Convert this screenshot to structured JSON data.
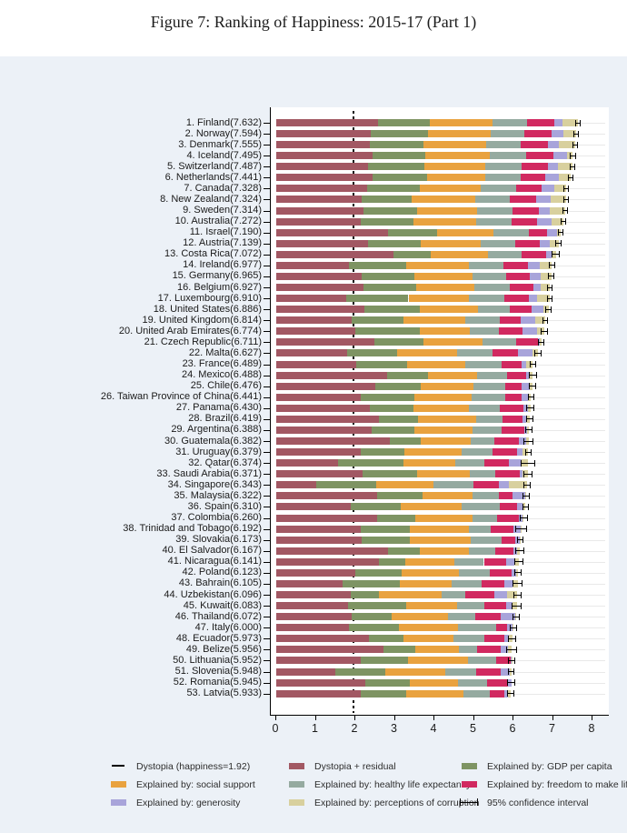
{
  "title": "Figure 7: Ranking of Happiness: 2015-17 (Part 1)",
  "colors": {
    "background": "#ecf1f7",
    "plot_background": "#ffffff",
    "axis": "#000000",
    "row_guide": "#e9e9e9",
    "residual": "#a25863",
    "gdp": "#7e9463",
    "soc": "#e9a23f",
    "hea": "#95aaa0",
    "fre": "#d12960",
    "gen": "#a8a4da",
    "cor": "#d8d09e"
  },
  "legend": {
    "items": [
      {
        "type": "line",
        "colorKey": "axis",
        "label": "Dystopia (happiness=1.92)"
      },
      {
        "type": "swatch",
        "colorKey": "residual",
        "label": "Dystopia + residual"
      },
      {
        "type": "swatch",
        "colorKey": "gdp",
        "label": "Explained by: GDP per capita"
      },
      {
        "type": "swatch",
        "colorKey": "soc",
        "label": "Explained by: social support"
      },
      {
        "type": "swatch",
        "colorKey": "hea",
        "label": "Explained by: healthy life expectancy"
      },
      {
        "type": "swatch",
        "colorKey": "fre",
        "label": "Explained by: freedom to make life choices"
      },
      {
        "type": "swatch",
        "colorKey": "gen",
        "label": "Explained by: generosity"
      },
      {
        "type": "swatch",
        "colorKey": "cor",
        "label": "Explained by: perceptions of corruption"
      },
      {
        "type": "whisker",
        "colorKey": "axis",
        "label": "95% confidence interval"
      }
    ]
  },
  "chart_data": {
    "type": "bar",
    "orientation": "horizontal",
    "stacked": true,
    "title": "Figure 7: Ranking of Happiness: 2015-17 (Part 1)",
    "xlabel": "",
    "ylabel": "",
    "xlim": [
      0,
      8
    ],
    "x_ticks": [
      0,
      1,
      2,
      3,
      4,
      5,
      6,
      7,
      8
    ],
    "grid": "row-guides",
    "legend_position": "bottom",
    "dystopia_line": {
      "x": 1.92,
      "label": "Dystopia (happiness=1.92)"
    },
    "segments": [
      {
        "key": "residual",
        "label": "Dystopia + residual",
        "computed": "score minus explained components"
      },
      {
        "key": "gdp",
        "label": "Explained by: GDP per capita"
      },
      {
        "key": "soc",
        "label": "Explained by: social support"
      },
      {
        "key": "hea",
        "label": "Explained by: healthy life expectancy"
      },
      {
        "key": "fre",
        "label": "Explained by: freedom to make life choices"
      },
      {
        "key": "gen",
        "label": "Explained by: generosity"
      },
      {
        "key": "cor",
        "label": "Explained by: perceptions of corruption"
      }
    ],
    "ci_label": "95% confidence interval",
    "countries": [
      {
        "rank": 1,
        "name": "Finland",
        "score": 7.632,
        "gdp": 1.305,
        "soc": 1.592,
        "hea": 0.874,
        "fre": 0.681,
        "gen": 0.202,
        "cor": 0.393,
        "ci": 0.07
      },
      {
        "rank": 2,
        "name": "Norway",
        "score": 7.594,
        "gdp": 1.456,
        "soc": 1.582,
        "hea": 0.861,
        "fre": 0.686,
        "gen": 0.286,
        "cor": 0.34,
        "ci": 0.06
      },
      {
        "rank": 3,
        "name": "Denmark",
        "score": 7.555,
        "gdp": 1.351,
        "soc": 1.59,
        "hea": 0.868,
        "fre": 0.683,
        "gen": 0.284,
        "cor": 0.408,
        "ci": 0.07
      },
      {
        "rank": 4,
        "name": "Iceland",
        "score": 7.495,
        "gdp": 1.343,
        "soc": 1.644,
        "hea": 0.914,
        "fre": 0.677,
        "gen": 0.353,
        "cor": 0.138,
        "ci": 0.08
      },
      {
        "rank": 5,
        "name": "Switzerland",
        "score": 7.487,
        "gdp": 1.42,
        "soc": 1.549,
        "hea": 0.927,
        "fre": 0.66,
        "gen": 0.256,
        "cor": 0.357,
        "ci": 0.07
      },
      {
        "rank": 6,
        "name": "Netherlands",
        "score": 7.441,
        "gdp": 1.361,
        "soc": 1.488,
        "hea": 0.878,
        "fre": 0.638,
        "gen": 0.333,
        "cor": 0.295,
        "ci": 0.06
      },
      {
        "rank": 7,
        "name": "Canada",
        "score": 7.328,
        "gdp": 1.33,
        "soc": 1.532,
        "hea": 0.896,
        "fre": 0.653,
        "gen": 0.321,
        "cor": 0.291,
        "ci": 0.07
      },
      {
        "rank": 8,
        "name": "New Zealand",
        "score": 7.324,
        "gdp": 1.268,
        "soc": 1.601,
        "hea": 0.876,
        "fre": 0.669,
        "gen": 0.365,
        "cor": 0.389,
        "ci": 0.06
      },
      {
        "rank": 9,
        "name": "Sweden",
        "score": 7.314,
        "gdp": 1.355,
        "soc": 1.501,
        "hea": 0.913,
        "fre": 0.659,
        "gen": 0.285,
        "cor": 0.383,
        "ci": 0.07
      },
      {
        "rank": 10,
        "name": "Australia",
        "score": 7.272,
        "gdp": 1.34,
        "soc": 1.573,
        "hea": 0.91,
        "fre": 0.647,
        "gen": 0.361,
        "cor": 0.302,
        "ci": 0.07
      },
      {
        "rank": 11,
        "name": "Israel",
        "score": 7.19,
        "gdp": 1.244,
        "soc": 1.433,
        "hea": 0.888,
        "fre": 0.464,
        "gen": 0.262,
        "cor": 0.082,
        "ci": 0.07
      },
      {
        "rank": 12,
        "name": "Austria",
        "score": 7.139,
        "gdp": 1.341,
        "soc": 1.504,
        "hea": 0.891,
        "fre": 0.617,
        "gen": 0.242,
        "cor": 0.224,
        "ci": 0.08
      },
      {
        "rank": 13,
        "name": "Costa Rica",
        "score": 7.072,
        "gdp": 0.959,
        "soc": 1.431,
        "hea": 0.868,
        "fre": 0.613,
        "gen": 0.144,
        "cor": 0.101,
        "ci": 0.1
      },
      {
        "rank": 14,
        "name": "Ireland",
        "score": 6.977,
        "gdp": 1.448,
        "soc": 1.583,
        "hea": 0.876,
        "fre": 0.614,
        "gen": 0.307,
        "cor": 0.306,
        "ci": 0.07
      },
      {
        "rank": 15,
        "name": "Germany",
        "score": 6.965,
        "gdp": 1.34,
        "soc": 1.474,
        "hea": 0.861,
        "fre": 0.586,
        "gen": 0.273,
        "cor": 0.28,
        "ci": 0.08
      },
      {
        "rank": 16,
        "name": "Belgium",
        "score": 6.927,
        "gdp": 1.324,
        "soc": 1.483,
        "hea": 0.894,
        "fre": 0.583,
        "gen": 0.188,
        "cor": 0.24,
        "ci": 0.07
      },
      {
        "rank": 17,
        "name": "Luxembourg",
        "score": 6.91,
        "gdp": 1.576,
        "soc": 1.52,
        "hea": 0.896,
        "fre": 0.632,
        "gen": 0.196,
        "cor": 0.321,
        "ci": 0.07
      },
      {
        "rank": 18,
        "name": "United States",
        "score": 6.886,
        "gdp": 1.398,
        "soc": 1.471,
        "hea": 0.819,
        "fre": 0.547,
        "gen": 0.291,
        "cor": 0.133,
        "ci": 0.08
      },
      {
        "rank": 19,
        "name": "United Kingdom",
        "score": 6.814,
        "gdp": 1.301,
        "soc": 1.559,
        "hea": 0.883,
        "fre": 0.533,
        "gen": 0.354,
        "cor": 0.272,
        "ci": 0.07
      },
      {
        "rank": 20,
        "name": "United Arab Emirates",
        "score": 6.774,
        "gdp": 1.626,
        "soc": 1.266,
        "hea": 0.726,
        "fre": 0.608,
        "gen": 0.36,
        "cor": 0.182,
        "ci": 0.09
      },
      {
        "rank": 21,
        "name": "Czech Republic",
        "score": 6.711,
        "gdp": 1.233,
        "soc": 1.489,
        "hea": 0.854,
        "fre": 0.543,
        "gen": 0.064,
        "cor": 0.034,
        "ci": 0.08
      },
      {
        "rank": 22,
        "name": "Malta",
        "score": 6.627,
        "gdp": 1.27,
        "soc": 1.525,
        "hea": 0.884,
        "fre": 0.645,
        "gen": 0.376,
        "cor": 0.142,
        "ci": 0.09
      },
      {
        "rank": 23,
        "name": "France",
        "score": 6.489,
        "gdp": 1.293,
        "soc": 1.466,
        "hea": 0.908,
        "fre": 0.52,
        "gen": 0.098,
        "cor": 0.176,
        "ci": 0.08
      },
      {
        "rank": 24,
        "name": "Mexico",
        "score": 6.488,
        "gdp": 1.038,
        "soc": 1.252,
        "hea": 0.761,
        "fre": 0.479,
        "gen": 0.069,
        "cor": 0.095,
        "ci": 0.1
      },
      {
        "rank": 25,
        "name": "Chile",
        "score": 6.476,
        "gdp": 1.131,
        "soc": 1.331,
        "hea": 0.808,
        "fre": 0.431,
        "gen": 0.197,
        "cor": 0.061,
        "ci": 0.09
      },
      {
        "rank": 26,
        "name": "Taiwan Province of China",
        "score": 6.441,
        "gdp": 1.365,
        "soc": 1.436,
        "hea": 0.857,
        "fre": 0.418,
        "gen": 0.151,
        "cor": 0.078,
        "ci": 0.08
      },
      {
        "rank": 27,
        "name": "Panama",
        "score": 6.43,
        "gdp": 1.112,
        "soc": 1.395,
        "hea": 0.779,
        "fre": 0.596,
        "gen": 0.125,
        "cor": 0.054,
        "ci": 0.1
      },
      {
        "rank": 28,
        "name": "Brazil",
        "score": 6.419,
        "gdp": 0.986,
        "soc": 1.474,
        "hea": 0.675,
        "fre": 0.493,
        "gen": 0.11,
        "cor": 0.088,
        "ci": 0.09
      },
      {
        "rank": 29,
        "name": "Argentina",
        "score": 6.388,
        "gdp": 1.073,
        "soc": 1.468,
        "hea": 0.744,
        "fre": 0.57,
        "gen": 0.062,
        "cor": 0.054,
        "ci": 0.09
      },
      {
        "rank": 30,
        "name": "Guatemala",
        "score": 6.382,
        "gdp": 0.781,
        "soc": 1.268,
        "hea": 0.608,
        "fre": 0.604,
        "gen": 0.179,
        "cor": 0.071,
        "ci": 0.12
      },
      {
        "rank": 31,
        "name": "Uruguay",
        "score": 6.379,
        "gdp": 1.093,
        "soc": 1.459,
        "hea": 0.771,
        "fre": 0.625,
        "gen": 0.13,
        "cor": 0.155,
        "ci": 0.09
      },
      {
        "rank": 32,
        "name": "Qatar",
        "score": 6.374,
        "gdp": 1.649,
        "soc": 1.303,
        "hea": 0.748,
        "fre": 0.604,
        "gen": 0.33,
        "cor": 0.167,
        "ci": 0.18
      },
      {
        "rank": 33,
        "name": "Saudi Arabia",
        "score": 6.371,
        "gdp": 1.379,
        "soc": 1.331,
        "hea": 0.639,
        "fre": 0.626,
        "gen": 0.08,
        "cor": 0.132,
        "ci": 0.12
      },
      {
        "rank": 34,
        "name": "Singapore",
        "score": 6.343,
        "gdp": 1.529,
        "soc": 1.451,
        "hea": 1.008,
        "fre": 0.631,
        "gen": 0.261,
        "cor": 0.457,
        "ci": 0.09
      },
      {
        "rank": 35,
        "name": "Malaysia",
        "score": 6.322,
        "gdp": 1.161,
        "soc": 1.258,
        "hea": 0.669,
        "fre": 0.356,
        "gen": 0.31,
        "cor": 0.024,
        "ci": 0.1
      },
      {
        "rank": 36,
        "name": "Spain",
        "score": 6.31,
        "gdp": 1.251,
        "soc": 1.538,
        "hea": 0.965,
        "fre": 0.449,
        "gen": 0.142,
        "cor": 0.074,
        "ci": 0.08
      },
      {
        "rank": 37,
        "name": "Colombia",
        "score": 6.26,
        "gdp": 0.96,
        "soc": 1.439,
        "hea": 0.635,
        "fre": 0.531,
        "gen": 0.099,
        "cor": 0.034,
        "ci": 0.1
      },
      {
        "rank": 38,
        "name": "Trinidad and Tobago",
        "score": 6.192,
        "gdp": 1.223,
        "soc": 1.492,
        "hea": 0.564,
        "fre": 0.575,
        "gen": 0.171,
        "cor": 0.019,
        "ci": 0.15
      },
      {
        "rank": 39,
        "name": "Slovakia",
        "score": 6.173,
        "gdp": 1.21,
        "soc": 1.537,
        "hea": 0.776,
        "fre": 0.354,
        "gen": 0.105,
        "cor": 0.022,
        "ci": 0.09
      },
      {
        "rank": 40,
        "name": "El Salvador",
        "score": 6.167,
        "gdp": 0.794,
        "soc": 1.242,
        "hea": 0.675,
        "fre": 0.464,
        "gen": 0.083,
        "cor": 0.074,
        "ci": 0.11
      },
      {
        "rank": 41,
        "name": "Nicaragua",
        "score": 6.141,
        "gdp": 0.668,
        "soc": 1.247,
        "hea": 0.746,
        "fre": 0.571,
        "gen": 0.202,
        "cor": 0.115,
        "ci": 0.11
      },
      {
        "rank": 42,
        "name": "Poland",
        "score": 6.123,
        "gdp": 1.176,
        "soc": 1.448,
        "hea": 0.781,
        "fre": 0.546,
        "gen": 0.108,
        "cor": 0.064,
        "ci": 0.09
      },
      {
        "rank": 43,
        "name": "Bahrain",
        "score": 6.105,
        "gdp": 1.439,
        "soc": 1.326,
        "hea": 0.748,
        "fre": 0.579,
        "gen": 0.2,
        "cor": 0.135,
        "ci": 0.13
      },
      {
        "rank": 44,
        "name": "Uzbekistan",
        "score": 6.096,
        "gdp": 0.719,
        "soc": 1.584,
        "hea": 0.605,
        "fre": 0.724,
        "gen": 0.328,
        "cor": 0.259,
        "ci": 0.1
      },
      {
        "rank": 45,
        "name": "Kuwait",
        "score": 6.083,
        "gdp": 1.474,
        "soc": 1.301,
        "hea": 0.675,
        "fre": 0.554,
        "gen": 0.167,
        "cor": 0.106,
        "ci": 0.12
      },
      {
        "rank": 46,
        "name": "Thailand",
        "score": 6.072,
        "gdp": 1.016,
        "soc": 1.417,
        "hea": 0.707,
        "fre": 0.637,
        "gen": 0.364,
        "cor": 0.029,
        "ci": 0.09
      },
      {
        "rank": 47,
        "name": "Italy",
        "score": 6.0,
        "gdp": 1.264,
        "soc": 1.501,
        "hea": 0.946,
        "fre": 0.281,
        "gen": 0.137,
        "cor": 0.028,
        "ci": 0.09
      },
      {
        "rank": 48,
        "name": "Ecuador",
        "score": 5.973,
        "gdp": 0.889,
        "soc": 1.265,
        "hea": 0.774,
        "fre": 0.498,
        "gen": 0.126,
        "cor": 0.087,
        "ci": 0.1
      },
      {
        "rank": 49,
        "name": "Belize",
        "score": 5.956,
        "gdp": 0.807,
        "soc": 1.101,
        "hea": 0.474,
        "fre": 0.593,
        "gen": 0.183,
        "cor": 0.089,
        "ci": 0.14
      },
      {
        "rank": 50,
        "name": "Lithuania",
        "score": 5.952,
        "gdp": 1.197,
        "soc": 1.527,
        "hea": 0.716,
        "fre": 0.35,
        "gen": 0.026,
        "cor": 0.006,
        "ci": 0.09
      },
      {
        "rank": 51,
        "name": "Slovenia",
        "score": 5.948,
        "gdp": 1.258,
        "soc": 1.523,
        "hea": 0.791,
        "fre": 0.604,
        "gen": 0.242,
        "cor": 0.036,
        "ci": 0.08
      },
      {
        "rank": 52,
        "name": "Romania",
        "score": 5.945,
        "gdp": 1.13,
        "soc": 1.212,
        "hea": 0.726,
        "fre": 0.528,
        "gen": 0.088,
        "cor": 0.001,
        "ci": 0.1
      },
      {
        "rank": 53,
        "name": "Latvia",
        "score": 5.933,
        "gdp": 1.148,
        "soc": 1.454,
        "hea": 0.671,
        "fre": 0.363,
        "gen": 0.092,
        "cor": 0.066,
        "ci": 0.09
      }
    ]
  }
}
